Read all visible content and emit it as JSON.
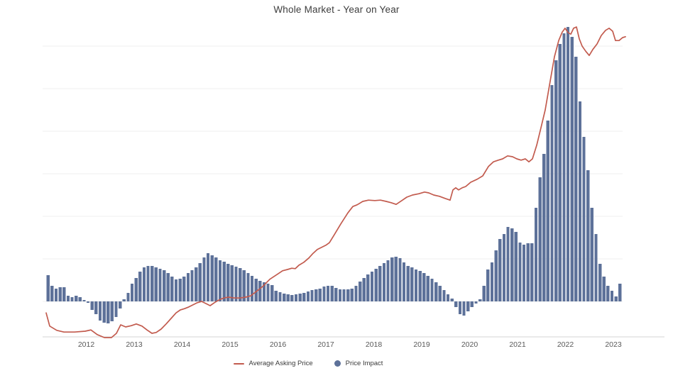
{
  "page": {
    "background": "#ffffff"
  },
  "chart": {
    "title": "Whole Market - Year on Year",
    "legend": [
      {
        "label": "Average Asking Price",
        "marker": "line",
        "color": "#c25b4e"
      },
      {
        "label": "Price Impact",
        "marker": "circle",
        "color": "#5d7199"
      }
    ]
  },
  "colors": {
    "bar": "#5d7199",
    "line": "#c25b4e",
    "grid": "#efefef",
    "axis": "#d6d6d6",
    "tick_text": "#595959",
    "title_text": "#3d3d3d"
  },
  "chart_data": {
    "type": "bar",
    "subtype": "combo bar + line, monthly data",
    "title": "Whole Market - Year on Year",
    "x_tick_labels": [
      "2012",
      "2013",
      "2014",
      "2015",
      "2016",
      "2017",
      "2018",
      "2019",
      "2020",
      "2021",
      "2022",
      "2023"
    ],
    "x_range": {
      "start_month": "2011-03",
      "end_month": "2023-02",
      "frequency": "monthly"
    },
    "y_axis": {
      "labels_visible": false,
      "unit": "gridline units (axis unlabeled; 0 = bar baseline)",
      "ylim": [
        -1.0,
        6.6
      ],
      "gridlines_at": [
        0,
        1,
        2,
        3,
        4,
        5,
        6
      ],
      "grid": true
    },
    "legend_position": "bottom-center",
    "series": [
      {
        "name": "Price Impact",
        "type": "bar",
        "color": "#5d7199",
        "start_month": "2011-03",
        "values_unit": "gridline units",
        "values": [
          0.62,
          0.37,
          0.3,
          0.33,
          0.33,
          0.13,
          0.1,
          0.13,
          0.1,
          0.03,
          -0.03,
          -0.2,
          -0.3,
          -0.45,
          -0.5,
          -0.52,
          -0.47,
          -0.37,
          -0.17,
          0.05,
          0.2,
          0.42,
          0.55,
          0.7,
          0.8,
          0.83,
          0.83,
          0.8,
          0.77,
          0.73,
          0.67,
          0.58,
          0.52,
          0.53,
          0.58,
          0.67,
          0.73,
          0.8,
          0.9,
          1.03,
          1.13,
          1.08,
          1.03,
          0.97,
          0.93,
          0.88,
          0.85,
          0.82,
          0.78,
          0.73,
          0.67,
          0.6,
          0.53,
          0.48,
          0.45,
          0.42,
          0.38,
          0.25,
          0.22,
          0.18,
          0.17,
          0.15,
          0.17,
          0.18,
          0.2,
          0.23,
          0.27,
          0.28,
          0.3,
          0.35,
          0.37,
          0.37,
          0.32,
          0.28,
          0.28,
          0.28,
          0.3,
          0.37,
          0.47,
          0.55,
          0.63,
          0.7,
          0.77,
          0.83,
          0.9,
          0.97,
          1.03,
          1.05,
          1.02,
          0.92,
          0.83,
          0.8,
          0.75,
          0.72,
          0.67,
          0.6,
          0.53,
          0.45,
          0.37,
          0.27,
          0.17,
          0.07,
          -0.13,
          -0.3,
          -0.33,
          -0.23,
          -0.13,
          -0.05,
          0.05,
          0.37,
          0.75,
          0.92,
          1.2,
          1.47,
          1.58,
          1.75,
          1.72,
          1.63,
          1.38,
          1.33,
          1.37,
          1.37,
          2.2,
          2.92,
          3.47,
          4.25,
          5.08,
          5.67,
          6.05,
          6.3,
          6.45,
          6.22,
          5.75,
          4.7,
          3.87,
          3.08,
          2.2,
          1.58,
          0.88,
          0.58,
          0.37,
          0.25,
          0.12,
          0.42
        ]
      },
      {
        "name": "Average Asking Price",
        "type": "line",
        "color": "#c25b4e",
        "points_unit": "[x pixel position, value in gridline units]",
        "points": [
          [
            65,
            -0.27
          ],
          [
            70,
            -0.58
          ],
          [
            80,
            -0.68
          ],
          [
            90,
            -0.72
          ],
          [
            105,
            -0.72
          ],
          [
            120,
            -0.7
          ],
          [
            128,
            -0.67
          ],
          [
            137,
            -0.78
          ],
          [
            147,
            -0.85
          ],
          [
            157,
            -0.85
          ],
          [
            164,
            -0.75
          ],
          [
            170,
            -0.55
          ],
          [
            177,
            -0.6
          ],
          [
            185,
            -0.57
          ],
          [
            192,
            -0.53
          ],
          [
            200,
            -0.58
          ],
          [
            207,
            -0.67
          ],
          [
            214,
            -0.75
          ],
          [
            220,
            -0.73
          ],
          [
            227,
            -0.65
          ],
          [
            234,
            -0.53
          ],
          [
            241,
            -0.4
          ],
          [
            248,
            -0.27
          ],
          [
            254,
            -0.2
          ],
          [
            260,
            -0.17
          ],
          [
            266,
            -0.13
          ],
          [
            272,
            -0.08
          ],
          [
            278,
            -0.03
          ],
          [
            284,
            0.0
          ],
          [
            290,
            -0.05
          ],
          [
            296,
            -0.1
          ],
          [
            302,
            -0.03
          ],
          [
            308,
            0.03
          ],
          [
            315,
            0.08
          ],
          [
            322,
            0.1
          ],
          [
            330,
            0.08
          ],
          [
            338,
            0.08
          ],
          [
            346,
            0.1
          ],
          [
            353,
            0.13
          ],
          [
            360,
            0.22
          ],
          [
            370,
            0.35
          ],
          [
            380,
            0.52
          ],
          [
            390,
            0.63
          ],
          [
            398,
            0.72
          ],
          [
            405,
            0.75
          ],
          [
            411,
            0.78
          ],
          [
            416,
            0.77
          ],
          [
            421,
            0.85
          ],
          [
            428,
            0.92
          ],
          [
            435,
            1.02
          ],
          [
            441,
            1.13
          ],
          [
            447,
            1.22
          ],
          [
            453,
            1.27
          ],
          [
            459,
            1.32
          ],
          [
            464,
            1.38
          ],
          [
            471,
            1.57
          ],
          [
            480,
            1.82
          ],
          [
            490,
            2.08
          ],
          [
            497,
            2.23
          ],
          [
            503,
            2.27
          ],
          [
            511,
            2.35
          ],
          [
            519,
            2.38
          ],
          [
            528,
            2.37
          ],
          [
            536,
            2.38
          ],
          [
            544,
            2.35
          ],
          [
            551,
            2.32
          ],
          [
            558,
            2.28
          ],
          [
            566,
            2.37
          ],
          [
            573,
            2.45
          ],
          [
            581,
            2.5
          ],
          [
            590,
            2.53
          ],
          [
            598,
            2.57
          ],
          [
            604,
            2.55
          ],
          [
            611,
            2.5
          ],
          [
            619,
            2.47
          ],
          [
            627,
            2.42
          ],
          [
            634,
            2.38
          ],
          [
            638,
            2.62
          ],
          [
            642,
            2.67
          ],
          [
            646,
            2.62
          ],
          [
            651,
            2.67
          ],
          [
            656,
            2.7
          ],
          [
            663,
            2.8
          ],
          [
            672,
            2.87
          ],
          [
            680,
            2.95
          ],
          [
            688,
            3.17
          ],
          [
            695,
            3.28
          ],
          [
            702,
            3.32
          ],
          [
            708,
            3.35
          ],
          [
            715,
            3.42
          ],
          [
            722,
            3.4
          ],
          [
            728,
            3.35
          ],
          [
            734,
            3.32
          ],
          [
            740,
            3.35
          ],
          [
            745,
            3.28
          ],
          [
            750,
            3.35
          ],
          [
            756,
            3.67
          ],
          [
            762,
            4.08
          ],
          [
            768,
            4.5
          ],
          [
            774,
            5.08
          ],
          [
            781,
            5.75
          ],
          [
            787,
            6.13
          ],
          [
            792,
            6.33
          ],
          [
            796,
            6.42
          ],
          [
            800,
            6.32
          ],
          [
            804,
            6.28
          ],
          [
            808,
            6.42
          ],
          [
            812,
            6.45
          ],
          [
            816,
            6.17
          ],
          [
            820,
            6.0
          ],
          [
            825,
            5.88
          ],
          [
            830,
            5.78
          ],
          [
            835,
            5.92
          ],
          [
            841,
            6.05
          ],
          [
            847,
            6.25
          ],
          [
            853,
            6.37
          ],
          [
            858,
            6.42
          ],
          [
            863,
            6.35
          ],
          [
            867,
            6.13
          ],
          [
            872,
            6.13
          ],
          [
            877,
            6.2
          ],
          [
            881,
            6.22
          ]
        ]
      }
    ]
  }
}
